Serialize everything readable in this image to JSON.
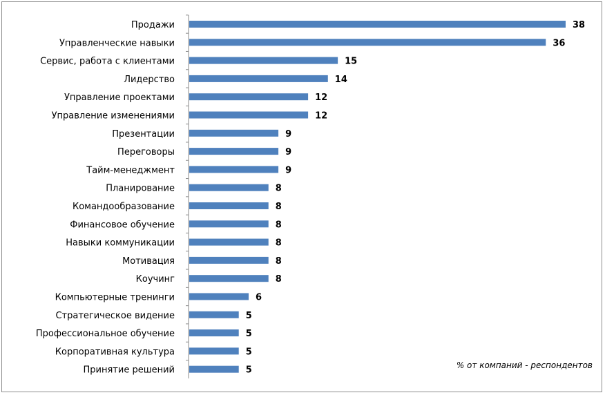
{
  "chart_data": {
    "type": "bar",
    "orientation": "horizontal",
    "categories": [
      "Продажи",
      "Управленческие навыки",
      "Сервис, работа с клиентами",
      "Лидерство",
      "Управление проектами",
      "Управление изменениями",
      "Презентации",
      "Переговоры",
      "Тайм-менеджмент",
      "Планирование",
      "Командообразование",
      "Финансовое обучение",
      "Навыки коммуникации",
      "Мотивация",
      "Коучинг",
      "Компьютерные тренинги",
      "Стратегическое видение",
      "Профессиональное обучение",
      "Корпоративная культура",
      "Принятие решений"
    ],
    "values": [
      38,
      36,
      15,
      14,
      12,
      12,
      9,
      9,
      9,
      8,
      8,
      8,
      8,
      8,
      8,
      6,
      5,
      5,
      5,
      5
    ],
    "annotation": "% от компаний - респондентов",
    "xlim": [
      0,
      38
    ],
    "bar_color": "#4f81bd",
    "grid": false,
    "legend": "none"
  }
}
